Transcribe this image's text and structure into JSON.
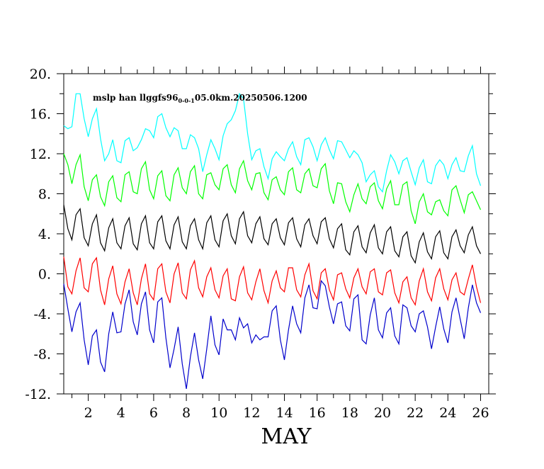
{
  "chart_data": {
    "type": "line",
    "title": "",
    "annotation": {
      "text": "mslp han llggfs96",
      "subscript": "0-0-1",
      "suffix": "05.0km.20250506.1200"
    },
    "xlabel": "MAY",
    "ylabel": "",
    "xlim": [
      0.5,
      26.5
    ],
    "ylim": [
      -12,
      20
    ],
    "yticks": [
      -12,
      -8,
      -4,
      0,
      4,
      8,
      12,
      16,
      20
    ],
    "ytick_labels": [
      "-12.",
      "-8.",
      "-4.",
      "0.",
      "4.",
      "8.",
      "12.",
      "16.",
      "20."
    ],
    "xticks": [
      2,
      4,
      6,
      8,
      10,
      12,
      14,
      16,
      18,
      20,
      22,
      24,
      26
    ],
    "xtick_labels": [
      "2",
      "4",
      "6",
      "8",
      "10",
      "12",
      "14",
      "16",
      "18",
      "20",
      "22",
      "24",
      "26"
    ],
    "grid": false,
    "legend": "none",
    "x_start": 0.5,
    "x_step": 0.25,
    "series": [
      {
        "color": "#00ffff",
        "values": [
          14.8,
          14.5,
          14.7,
          18.0,
          18.0,
          15.5,
          13.7,
          15.5,
          16.5,
          13.5,
          11.3,
          12.0,
          13.4,
          11.3,
          11.1,
          13.3,
          13.6,
          12.3,
          12.6,
          13.4,
          14.5,
          14.3,
          13.6,
          15.7,
          16.0,
          14.6,
          13.7,
          14.6,
          14.3,
          12.5,
          12.5,
          13.9,
          13.6,
          12.5,
          10.2,
          11.9,
          13.4,
          12.5,
          11.4,
          13.8,
          15.0,
          15.4,
          16.3,
          18.0,
          17.5,
          14.0,
          11.4,
          12.3,
          12.5,
          10.7,
          9.5,
          11.5,
          12.2,
          11.7,
          11.3,
          12.5,
          13.2,
          11.7,
          10.9,
          13.4,
          13.6,
          12.7,
          11.3,
          12.9,
          13.6,
          12.4,
          11.5,
          13.3,
          13.2,
          12.4,
          11.6,
          12.3,
          11.9,
          11.1,
          9.2,
          9.9,
          10.3,
          8.7,
          8.2,
          10.3,
          11.9,
          11.2,
          10.0,
          11.3,
          11.6,
          10.2,
          8.9,
          10.6,
          11.4,
          9.2,
          9.0,
          10.8,
          11.4,
          10.9,
          9.5,
          10.9,
          11.6,
          10.3,
          10.2,
          11.8,
          12.8,
          10.0,
          8.8
        ]
      },
      {
        "color": "#00ff00",
        "values": [
          12.0,
          10.9,
          9.0,
          10.9,
          11.9,
          8.7,
          7.3,
          9.4,
          9.9,
          7.7,
          6.8,
          9.2,
          9.8,
          7.6,
          7.2,
          9.9,
          10.2,
          8.2,
          8.0,
          10.5,
          11.2,
          8.4,
          7.5,
          9.8,
          10.3,
          7.8,
          7.3,
          9.9,
          10.6,
          8.6,
          8.0,
          10.2,
          10.8,
          8.0,
          7.5,
          9.9,
          10.1,
          8.9,
          8.4,
          10.5,
          10.9,
          8.9,
          8.1,
          10.5,
          11.3,
          9.3,
          8.4,
          10.0,
          10.1,
          8.1,
          7.4,
          9.4,
          9.7,
          8.4,
          7.9,
          10.2,
          10.6,
          8.4,
          8.1,
          10.0,
          10.5,
          8.8,
          8.6,
          10.5,
          11.0,
          8.3,
          7.0,
          9.1,
          9.0,
          7.2,
          6.2,
          7.9,
          9.0,
          7.5,
          7.0,
          8.7,
          9.1,
          7.3,
          6.5,
          8.5,
          9.3,
          6.9,
          6.9,
          8.9,
          9.2,
          6.3,
          5.0,
          7.2,
          8.0,
          6.2,
          5.9,
          7.2,
          7.4,
          6.3,
          5.8,
          8.4,
          8.8,
          7.4,
          6.1,
          7.9,
          8.2,
          7.3,
          6.4
        ]
      },
      {
        "color": "#000000",
        "values": [
          6.9,
          4.5,
          3.4,
          5.9,
          6.5,
          3.6,
          2.8,
          5.0,
          5.9,
          3.1,
          2.3,
          4.6,
          5.5,
          3.1,
          2.5,
          4.8,
          5.6,
          3.0,
          2.4,
          5.0,
          5.8,
          3.1,
          2.5,
          5.2,
          5.8,
          3.3,
          2.5,
          4.9,
          5.7,
          3.2,
          2.5,
          4.8,
          5.5,
          3.4,
          2.5,
          5.1,
          5.8,
          3.4,
          2.7,
          5.3,
          6.0,
          3.8,
          3.0,
          5.5,
          6.2,
          3.8,
          3.1,
          5.0,
          5.7,
          3.5,
          2.9,
          5.0,
          5.5,
          3.6,
          2.9,
          5.1,
          5.6,
          3.5,
          2.7,
          4.9,
          5.5,
          3.8,
          3.0,
          5.2,
          5.6,
          3.5,
          2.6,
          4.5,
          5.0,
          2.4,
          1.9,
          4.2,
          4.8,
          2.7,
          2.1,
          4.1,
          4.9,
          2.6,
          2.0,
          4.2,
          4.7,
          2.3,
          1.7,
          3.7,
          4.2,
          1.8,
          1.1,
          3.2,
          4.1,
          2.2,
          1.5,
          3.7,
          4.3,
          2.1,
          1.5,
          3.7,
          4.4,
          2.8,
          2.1,
          3.9,
          4.7,
          2.8,
          2.0
        ]
      },
      {
        "color": "#ff0000",
        "values": [
          1.7,
          -1.3,
          -2.0,
          0.3,
          1.6,
          -1.4,
          -1.8,
          1.0,
          1.6,
          -1.6,
          -3.1,
          -0.5,
          0.8,
          -2.0,
          -3.0,
          -0.8,
          0.5,
          -1.9,
          -3.1,
          -0.5,
          1.0,
          -2.0,
          -2.6,
          0.5,
          1.0,
          -1.8,
          -2.9,
          0.0,
          1.1,
          -1.9,
          -2.5,
          0.4,
          1.3,
          -1.4,
          -2.3,
          -0.3,
          0.6,
          -1.6,
          -2.4,
          -0.2,
          0.5,
          -2.5,
          -2.7,
          -0.3,
          0.7,
          -1.9,
          -2.6,
          -0.8,
          0.5,
          -1.7,
          -2.9,
          -0.7,
          0.3,
          -1.4,
          -1.8,
          0.6,
          0.6,
          -1.6,
          -2.3,
          -0.1,
          1.0,
          -1.7,
          -2.5,
          0.1,
          0.5,
          -1.6,
          -2.6,
          -0.1,
          0.1,
          -1.5,
          -2.4,
          -0.4,
          0.5,
          -1.3,
          -2.0,
          0.2,
          0.5,
          -1.8,
          -2.1,
          0.1,
          0.4,
          -1.9,
          -2.9,
          -0.8,
          -0.3,
          -2.4,
          -3.1,
          -0.7,
          0.5,
          -1.8,
          -2.7,
          -0.4,
          0.5,
          -1.5,
          -2.6,
          -0.6,
          0.1,
          -1.8,
          -2.1,
          -0.5,
          0.9,
          -1.3,
          -2.9
        ]
      },
      {
        "color": "#0000cc",
        "values": [
          -1.0,
          -3.5,
          -5.8,
          -3.8,
          -2.9,
          -6.6,
          -9.1,
          -6.2,
          -5.6,
          -8.8,
          -9.8,
          -6.0,
          -3.8,
          -5.9,
          -5.8,
          -3.0,
          -1.6,
          -4.8,
          -6.1,
          -3.0,
          -1.8,
          -5.6,
          -6.9,
          -2.8,
          -2.4,
          -6.4,
          -9.4,
          -7.5,
          -5.3,
          -9.0,
          -11.5,
          -8.3,
          -5.9,
          -8.6,
          -10.5,
          -7.5,
          -4.2,
          -7.1,
          -8.1,
          -4.5,
          -5.6,
          -5.6,
          -6.6,
          -4.4,
          -5.4,
          -5.0,
          -6.9,
          -6.1,
          -6.6,
          -6.3,
          -6.3,
          -3.7,
          -3.2,
          -6.6,
          -8.6,
          -5.6,
          -3.2,
          -5.0,
          -5.9,
          -2.4,
          -1.1,
          -3.4,
          -3.5,
          -0.7,
          -1.2,
          -3.3,
          -5.0,
          -3.0,
          -2.8,
          -5.2,
          -5.7,
          -2.5,
          -2.1,
          -6.6,
          -7.0,
          -4.1,
          -2.4,
          -5.6,
          -6.4,
          -3.9,
          -3.4,
          -6.2,
          -7.0,
          -3.1,
          -3.4,
          -5.2,
          -5.8,
          -4.0,
          -3.7,
          -5.3,
          -7.5,
          -5.3,
          -3.3,
          -5.5,
          -6.9,
          -3.8,
          -2.4,
          -4.5,
          -6.5,
          -3.4,
          -1.1,
          -2.9,
          -3.9
        ]
      }
    ]
  }
}
